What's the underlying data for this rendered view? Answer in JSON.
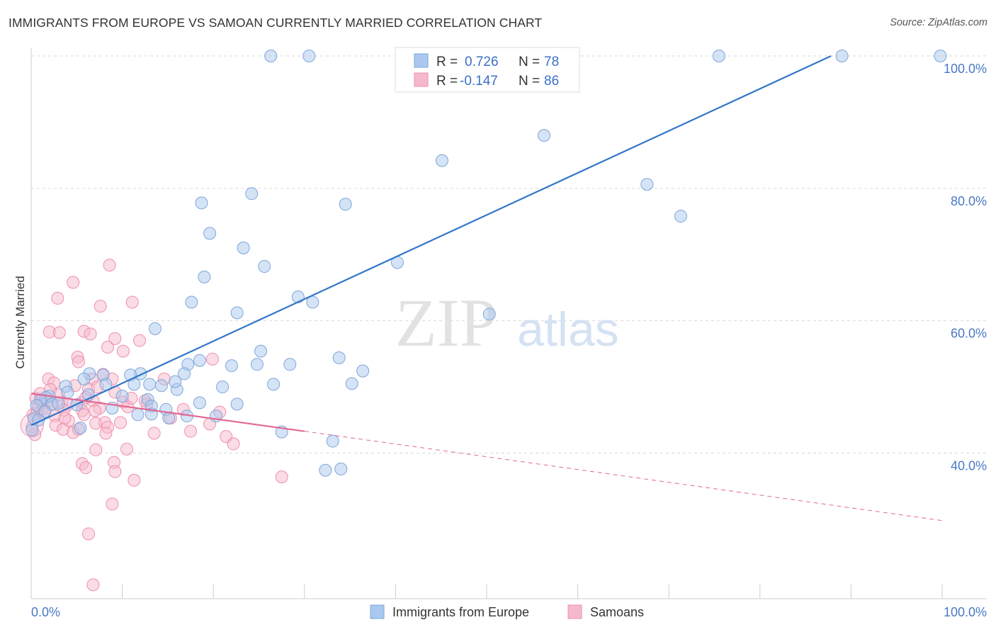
{
  "header": {
    "title": "IMMIGRANTS FROM EUROPE VS SAMOAN CURRENTLY MARRIED CORRELATION CHART",
    "source": "Source: ZipAtlas.com"
  },
  "watermark": {
    "zip": "ZIP",
    "atlas": "atlas"
  },
  "colors": {
    "blue_fill": "#aac8ee",
    "blue_stroke": "#7fa6da",
    "blue_line": "#2f74c9",
    "pink_fill": "#f6b9cc",
    "pink_stroke": "#ee8fae",
    "pink_line": "#e26893",
    "tick_label": "#4a79c4",
    "grid": "#d9d9d9"
  },
  "legend": {
    "rows": [
      {
        "r_label": "R =",
        "r_value": "0.726",
        "n_label": "N =",
        "n_value": "78",
        "series": "blue"
      },
      {
        "r_label": "R =",
        "r_value": "-0.147",
        "n_label": "N =",
        "n_value": "86",
        "series": "pink"
      }
    ]
  },
  "chart_data": {
    "type": "scatter",
    "title": "IMMIGRANTS FROM EUROPE VS SAMOAN CURRENTLY MARRIED CORRELATION CHART",
    "xlabel": "",
    "ylabel": "Currently Married",
    "xlim": [
      0,
      100
    ],
    "ylim": [
      18,
      100
    ],
    "x_tick_labels": [
      "0.0%",
      "100.0%"
    ],
    "y_ticks": [
      40,
      60,
      80,
      100
    ],
    "y_tick_labels": [
      "40.0%",
      "60.0%",
      "80.0%",
      "100.0%"
    ],
    "grid": true,
    "legend_position": "bottom-center",
    "series": [
      {
        "name": "Immigrants from Europe",
        "color": "#aac8ee",
        "trend": {
          "x0": 0,
          "y0": 44.2,
          "x1": 87.8,
          "y1": 100,
          "dashed_extension": false
        },
        "points": [
          [
            26.3,
            100
          ],
          [
            30.5,
            100
          ],
          [
            47.7,
            100
          ],
          [
            75.5,
            100
          ],
          [
            89,
            100
          ],
          [
            99.8,
            100
          ],
          [
            56.3,
            88
          ],
          [
            45.1,
            84.2
          ],
          [
            67.6,
            80.6
          ],
          [
            71.3,
            75.8
          ],
          [
            18.7,
            77.8
          ],
          [
            24.2,
            79.2
          ],
          [
            34.5,
            77.6
          ],
          [
            19.6,
            73.2
          ],
          [
            23.3,
            71
          ],
          [
            25.6,
            68.2
          ],
          [
            40.2,
            68.8
          ],
          [
            19,
            66.6
          ],
          [
            29.3,
            63.6
          ],
          [
            17.6,
            62.8
          ],
          [
            30.9,
            62.8
          ],
          [
            22.6,
            61.2
          ],
          [
            50.3,
            61
          ],
          [
            13.6,
            58.8
          ],
          [
            25.2,
            55.4
          ],
          [
            33.8,
            54.4
          ],
          [
            18.5,
            54
          ],
          [
            17.2,
            53.4
          ],
          [
            24.8,
            53.4
          ],
          [
            22,
            53.2
          ],
          [
            28.4,
            53.4
          ],
          [
            16.8,
            52
          ],
          [
            12,
            52
          ],
          [
            36.4,
            52.4
          ],
          [
            6.4,
            52
          ],
          [
            7.9,
            51.8
          ],
          [
            10.9,
            51.8
          ],
          [
            5.8,
            51.2
          ],
          [
            8.2,
            50.4
          ],
          [
            11.3,
            50.4
          ],
          [
            13.0,
            50.4
          ],
          [
            14.3,
            50.2
          ],
          [
            16,
            49.6
          ],
          [
            15.8,
            50.8
          ],
          [
            21,
            50
          ],
          [
            26.6,
            50.4
          ],
          [
            35.2,
            50.5
          ],
          [
            3.8,
            50.1
          ],
          [
            4.0,
            49.2
          ],
          [
            6.3,
            48.8
          ],
          [
            10.0,
            48.6
          ],
          [
            12.8,
            48.1
          ],
          [
            2.0,
            48.6
          ],
          [
            1.6,
            48.4
          ],
          [
            1.0,
            48
          ],
          [
            0.6,
            47.2
          ],
          [
            2.3,
            47.4
          ],
          [
            3.0,
            47.5
          ],
          [
            5.0,
            47.3
          ],
          [
            8.9,
            46.8
          ],
          [
            13.2,
            47.1
          ],
          [
            18.5,
            47.6
          ],
          [
            22.6,
            47.4
          ],
          [
            1.5,
            46.3
          ],
          [
            0.3,
            45.2
          ],
          [
            0.8,
            45
          ],
          [
            11.7,
            45.8
          ],
          [
            13.2,
            45.9
          ],
          [
            14.8,
            46.6
          ],
          [
            15.1,
            45.3
          ],
          [
            17.1,
            45.6
          ],
          [
            20.3,
            45.6
          ],
          [
            5.4,
            43.8
          ],
          [
            27.5,
            43.2
          ],
          [
            33.1,
            41.8
          ],
          [
            32.3,
            37.4
          ],
          [
            34.0,
            37.6
          ],
          [
            0.1,
            43.5
          ]
        ]
      },
      {
        "name": "Samoans",
        "color": "#f6b9cc",
        "trend": {
          "x0": 0,
          "y0": 49.0,
          "x1": 30,
          "y1": 43.3,
          "dashed_to_x": 100,
          "dashed_to_y": 29.8
        },
        "points": [
          [
            8.6,
            68.4
          ],
          [
            4.6,
            65.8
          ],
          [
            2.9,
            63.4
          ],
          [
            11.1,
            62.8
          ],
          [
            7.6,
            62.2
          ],
          [
            2.0,
            58.3
          ],
          [
            3.1,
            58.2
          ],
          [
            5.8,
            58.4
          ],
          [
            6.5,
            58
          ],
          [
            9.2,
            57.3
          ],
          [
            11.9,
            57
          ],
          [
            10.1,
            55.4
          ],
          [
            8.4,
            56
          ],
          [
            5.1,
            54.5
          ],
          [
            5.2,
            53.8
          ],
          [
            19.9,
            54.2
          ],
          [
            7.9,
            51.9
          ],
          [
            8.9,
            51.2
          ],
          [
            6.7,
            51.2
          ],
          [
            1.9,
            51.2
          ],
          [
            2.5,
            50.6
          ],
          [
            4.8,
            50.2
          ],
          [
            6.3,
            49.7
          ],
          [
            7.3,
            50
          ],
          [
            0.5,
            48.3
          ],
          [
            1.2,
            48
          ],
          [
            1.7,
            47.7
          ],
          [
            2.2,
            47.4
          ],
          [
            0.8,
            47
          ],
          [
            1.3,
            46.7
          ],
          [
            3.4,
            47.7
          ],
          [
            4.0,
            47.3
          ],
          [
            5.5,
            47.6
          ],
          [
            6.8,
            47.9
          ],
          [
            10.1,
            47.7
          ],
          [
            12.7,
            47.4
          ],
          [
            10.6,
            47
          ],
          [
            7.5,
            46.8
          ],
          [
            3.6,
            46.5
          ],
          [
            5.6,
            46.4
          ],
          [
            0.2,
            45.8
          ],
          [
            1.5,
            46.2
          ],
          [
            2.6,
            45.6
          ],
          [
            4.1,
            44.9
          ],
          [
            7.1,
            44.5
          ],
          [
            8.1,
            44.6
          ],
          [
            15.3,
            45.3
          ],
          [
            19.6,
            44.4
          ],
          [
            2.7,
            44.2
          ],
          [
            3.5,
            43.6
          ],
          [
            4.6,
            43.1
          ],
          [
            5.2,
            43.6
          ],
          [
            8.4,
            43.9
          ],
          [
            8.2,
            43
          ],
          [
            13.5,
            43
          ],
          [
            17.5,
            43.3
          ],
          [
            21.4,
            42.5
          ],
          [
            22.2,
            41.4
          ],
          [
            10.5,
            40.6
          ],
          [
            7.1,
            40.5
          ],
          [
            5.6,
            38.4
          ],
          [
            6.0,
            37.8
          ],
          [
            9.1,
            38.6
          ],
          [
            9.2,
            37.2
          ],
          [
            11.3,
            35.9
          ],
          [
            27.5,
            36.4
          ],
          [
            8.9,
            32.3
          ],
          [
            6.3,
            27.8
          ],
          [
            6.8,
            20.1
          ],
          [
            0.1,
            44
          ],
          [
            0.4,
            42.8
          ],
          [
            1.0,
            49
          ],
          [
            2.1,
            49.6
          ],
          [
            3.0,
            48.8
          ],
          [
            6.0,
            48.4
          ],
          [
            7.0,
            46.4
          ],
          [
            9.2,
            49.2
          ],
          [
            11.0,
            48.3
          ],
          [
            14.6,
            51.2
          ],
          [
            16.7,
            46.6
          ],
          [
            20.7,
            46.2
          ],
          [
            0.6,
            46
          ],
          [
            3.7,
            45.3
          ],
          [
            5.8,
            45.8
          ],
          [
            9.8,
            44.6
          ],
          [
            12.5,
            47.9
          ]
        ]
      }
    ]
  },
  "bottom_legend": {
    "items": [
      {
        "label": "Immigrants from Europe",
        "series": "blue"
      },
      {
        "label": "Samoans",
        "series": "pink"
      }
    ]
  }
}
